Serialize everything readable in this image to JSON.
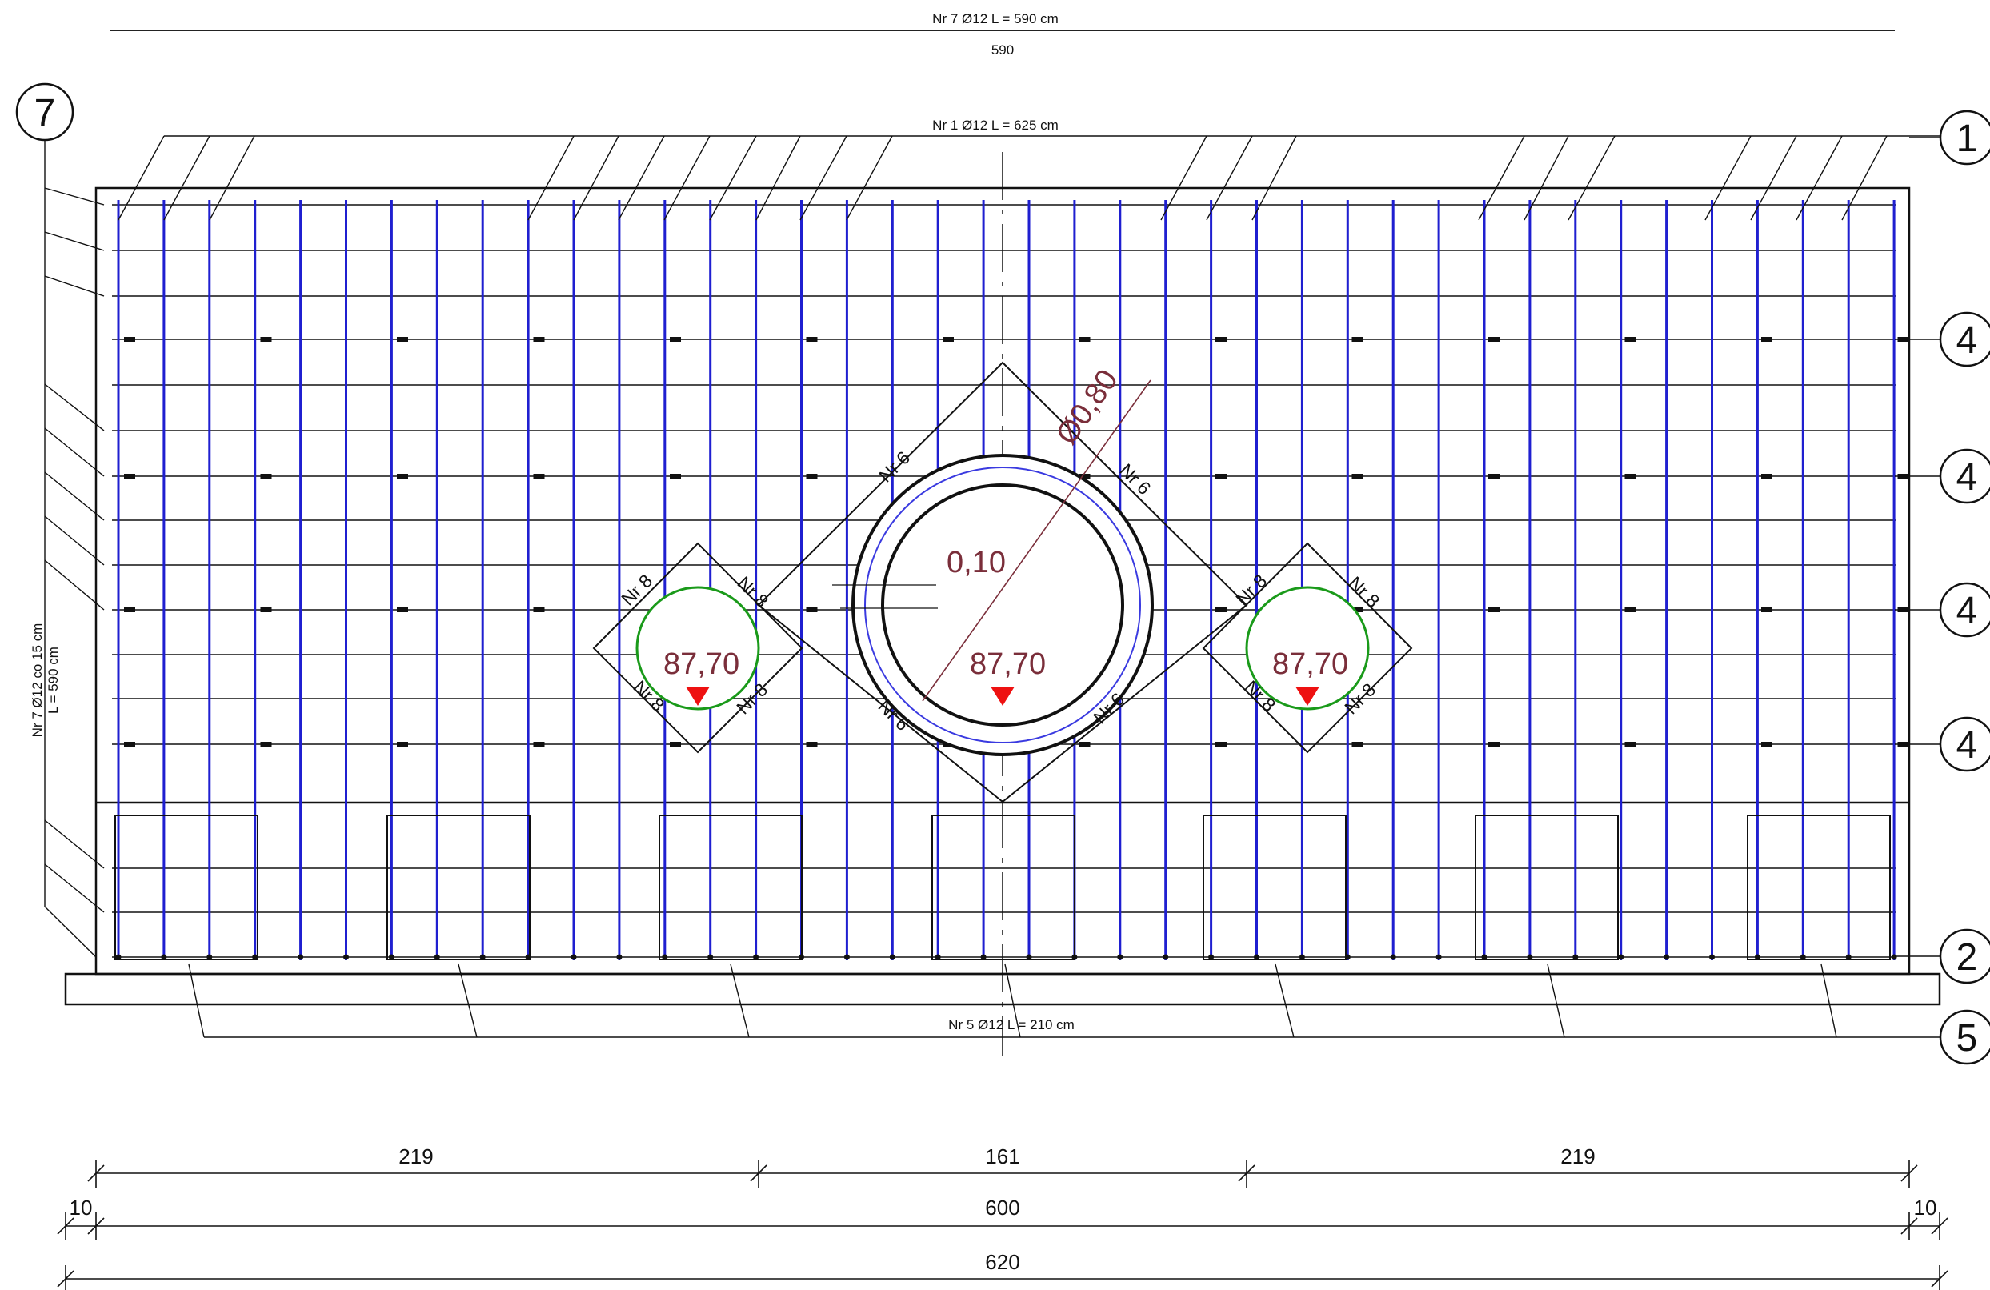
{
  "top_rebar": {
    "label": "Nr 7 Ø12 L = 590 cm",
    "length": "590"
  },
  "rebar_1_label": "Nr 1 Ø12 L = 625 cm",
  "rebar_5_label": "Nr 5 Ø12 L = 210 cm",
  "side_rebar": {
    "line1": "Nr 7 Ø12 co 15 cm",
    "line2": "L = 590 cm"
  },
  "markers": {
    "m7": "7",
    "m1": "1",
    "m4": "4",
    "m2": "2",
    "m5": "5"
  },
  "openings": {
    "main_diameter": "Ø0,80",
    "main_wall": "0,10",
    "level": "87,70",
    "trim_main": "Nr 6",
    "trim_small": "Nr 8"
  },
  "dimensions": {
    "row1": [
      "219",
      "161",
      "219"
    ],
    "row2": [
      "10",
      "600",
      "10"
    ],
    "row3": "620"
  },
  "colors": {
    "vertical_bars": "#1f1fd0",
    "small_openings": "#1a9a1a",
    "level_marker": "#ee1111",
    "annotation_text": "#7a2e3a"
  }
}
